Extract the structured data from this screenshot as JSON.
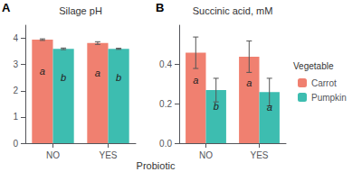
{
  "chart_data": [
    {
      "type": "bar",
      "label": "A",
      "title": "Silage pH",
      "xlabel": "Probiotic",
      "categories": [
        "NO",
        "YES"
      ],
      "series": [
        {
          "name": "Carrot",
          "color": "#F08070",
          "values": [
            3.95,
            3.82
          ],
          "errors": [
            0.03,
            0.05
          ],
          "annotations": [
            "a",
            "a"
          ]
        },
        {
          "name": "Pumpkin",
          "color": "#3DBDB0",
          "values": [
            3.6,
            3.6
          ],
          "errors": [
            0.03,
            0.02
          ],
          "annotations": [
            "b",
            "b"
          ]
        }
      ],
      "ylim": [
        0,
        4.5
      ],
      "yticks": [
        0,
        1,
        2,
        3,
        4
      ],
      "grid": false
    },
    {
      "type": "bar",
      "label": "B",
      "title": "Succinic acid, mM",
      "categories": [
        "NO",
        "YES"
      ],
      "series": [
        {
          "name": "Carrot",
          "color": "#F08070",
          "values": [
            0.46,
            0.44
          ],
          "errors": [
            0.08,
            0.08
          ],
          "annotations": [
            "a",
            "a"
          ]
        },
        {
          "name": "Pumpkin",
          "color": "#3DBDB0",
          "values": [
            0.27,
            0.26
          ],
          "errors": [
            0.06,
            0.07
          ],
          "annotations": [
            "b",
            "a"
          ]
        }
      ],
      "ylim": [
        0,
        0.6
      ],
      "yticks": [
        {
          "value": 0.0,
          "label": "0.0"
        },
        0.2,
        0.4
      ],
      "grid": false,
      "legend": "right",
      "legend_title": "Vegetable"
    }
  ]
}
